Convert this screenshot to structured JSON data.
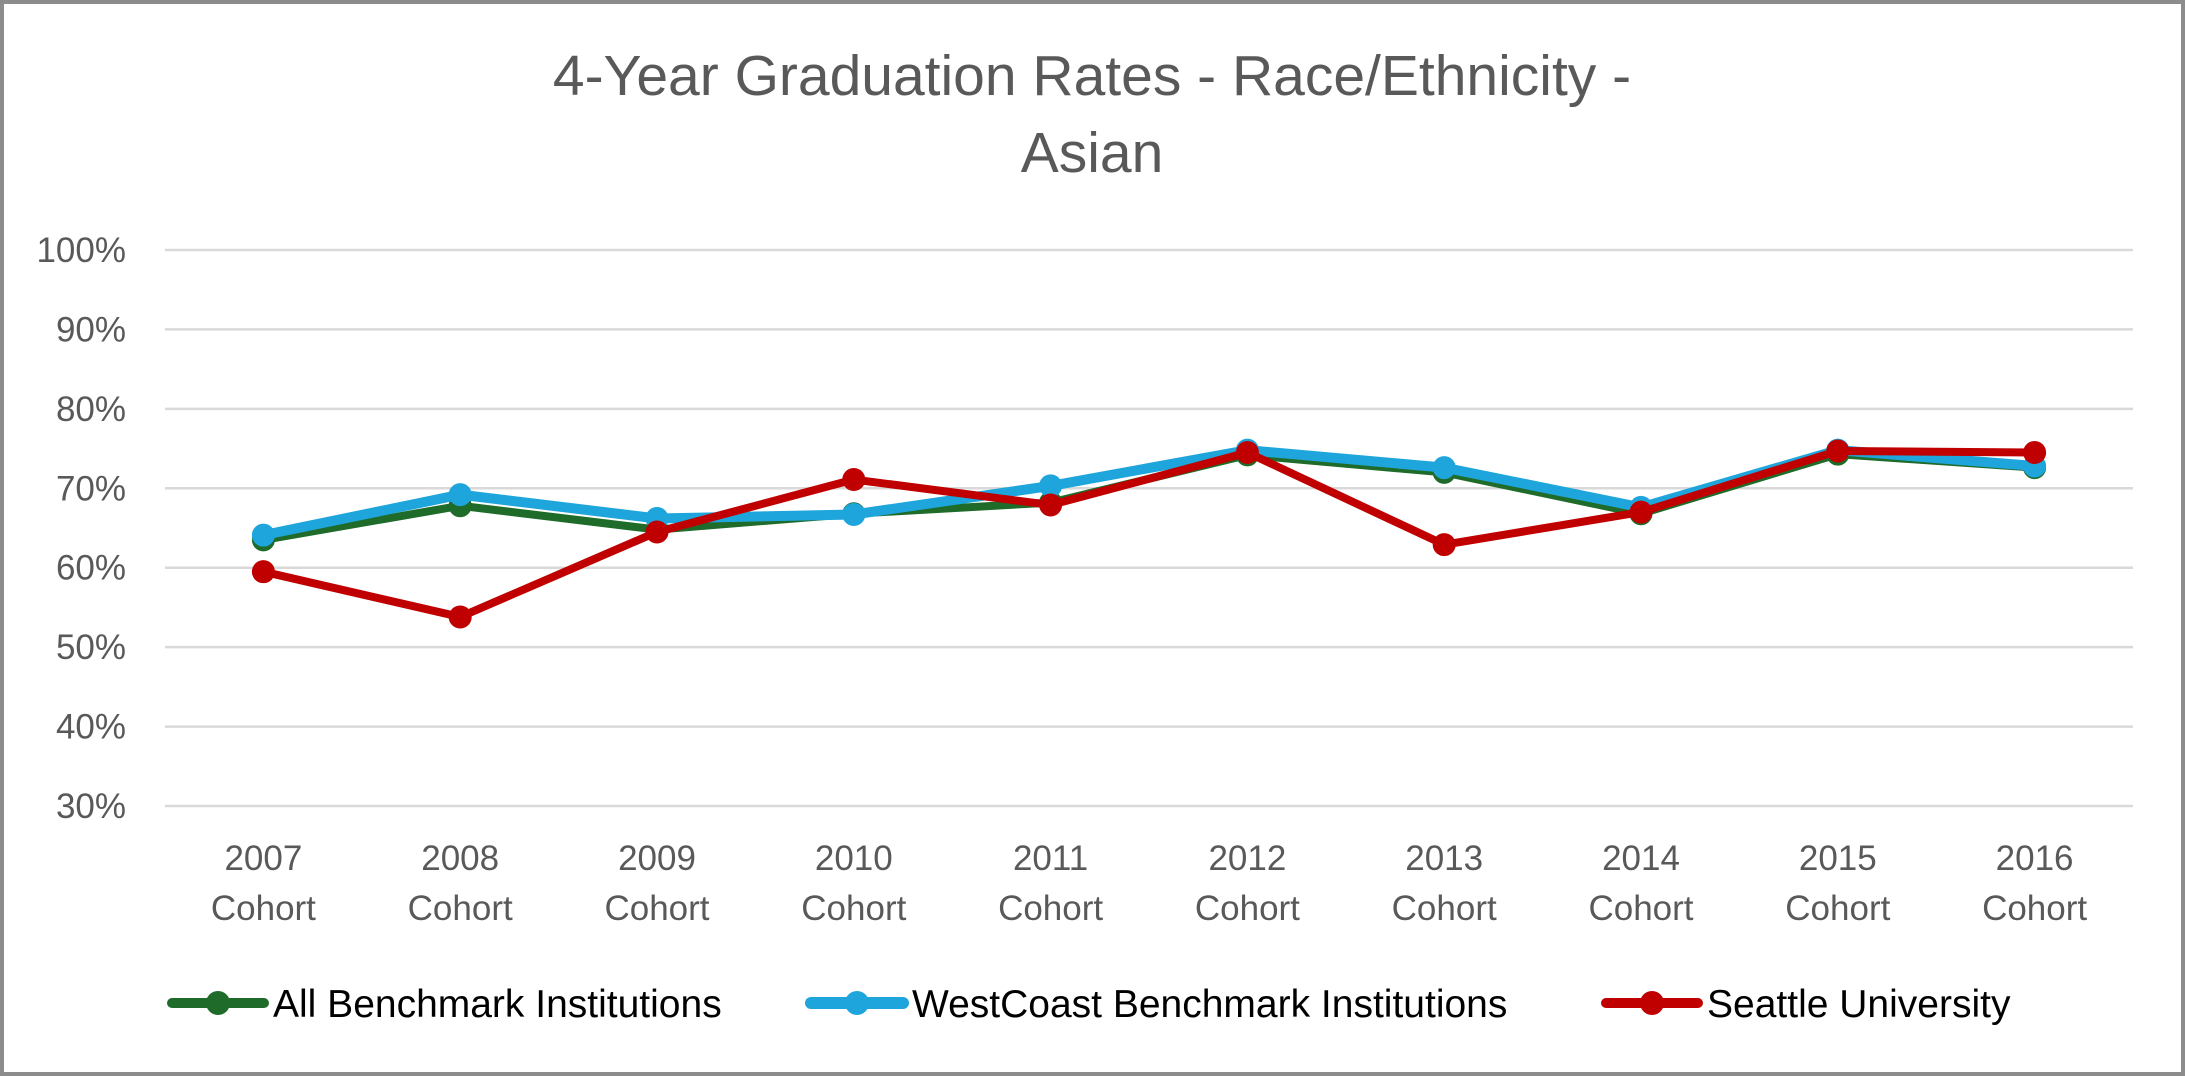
{
  "chart_data": {
    "type": "line",
    "title_lines": [
      "4-Year Graduation Rates - Race/Ethnicity -",
      "Asian"
    ],
    "categories": [
      [
        "2007",
        "Cohort"
      ],
      [
        "2008",
        "Cohort"
      ],
      [
        "2009",
        "Cohort"
      ],
      [
        "2010",
        "Cohort"
      ],
      [
        "2011",
        "Cohort"
      ],
      [
        "2012",
        "Cohort"
      ],
      [
        "2013",
        "Cohort"
      ],
      [
        "2014",
        "Cohort"
      ],
      [
        "2015",
        "Cohort"
      ],
      [
        "2016",
        "Cohort"
      ]
    ],
    "ylim": [
      0.3,
      1.0
    ],
    "yticks": [
      0.3,
      0.4,
      0.5,
      0.6,
      0.7,
      0.8,
      0.9,
      1.0
    ],
    "ytick_labels": [
      "30%",
      "40%",
      "50%",
      "60%",
      "70%",
      "80%",
      "90%",
      "100%"
    ],
    "grid": true,
    "legend_position": "bottom",
    "series": [
      {
        "name": "All Benchmark Institutions",
        "color": "#1e6b2a",
        "line_width": 8,
        "values": [
          0.635,
          0.678,
          0.648,
          0.668,
          0.682,
          0.742,
          0.72,
          0.668,
          0.743,
          0.726
        ]
      },
      {
        "name": "WestCoast Benchmark Institutions",
        "color": "#1ea6dc",
        "line_width": 10,
        "values": [
          0.641,
          0.692,
          0.662,
          0.667,
          0.703,
          0.748,
          0.726,
          0.676,
          0.748,
          0.728
        ]
      },
      {
        "name": "Seattle University",
        "color": "#c00000",
        "line_width": 8,
        "values": [
          0.595,
          0.538,
          0.645,
          0.711,
          0.679,
          0.745,
          0.629,
          0.67,
          0.747,
          0.745
        ]
      }
    ]
  }
}
